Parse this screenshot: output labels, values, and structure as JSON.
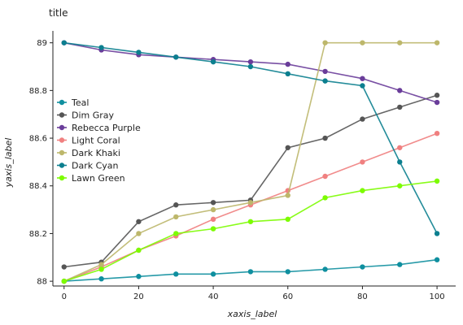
{
  "chart_data": {
    "type": "line",
    "title": "title",
    "xlabel": "xaxis_label",
    "ylabel": "yaxis_label",
    "xlim": [
      -3,
      105
    ],
    "ylim": [
      87.98,
      89.05
    ],
    "xticks": [
      0,
      20,
      40,
      60,
      80,
      100
    ],
    "yticks": [
      88.0,
      88.2,
      88.4,
      88.6,
      88.8,
      89.0
    ],
    "ytick_labels": [
      "88",
      "88.2",
      "88.4",
      "88.6",
      "88.8",
      "89"
    ],
    "grid": false,
    "legend_position": "left, inside plot",
    "series": [
      {
        "name": "Teal",
        "color": "#0f8f9f",
        "x": [
          0,
          10,
          20,
          30,
          40,
          50,
          60,
          70,
          80,
          90,
          100
        ],
        "y": [
          88.0,
          88.01,
          88.02,
          88.03,
          88.03,
          88.04,
          88.04,
          88.05,
          88.06,
          88.07,
          88.09
        ]
      },
      {
        "name": "Dim Gray",
        "color": "#555555",
        "x": [
          0,
          10,
          20,
          30,
          40,
          50,
          60,
          70,
          80,
          90,
          100
        ],
        "y": [
          88.06,
          88.08,
          88.25,
          88.32,
          88.33,
          88.34,
          88.56,
          88.6,
          88.68,
          88.73,
          88.78
        ]
      },
      {
        "name": "Rebecca Purple",
        "color": "#6a3d9a",
        "x": [
          0,
          10,
          20,
          30,
          40,
          50,
          60,
          70,
          80,
          90,
          100
        ],
        "y": [
          89.0,
          88.97,
          88.95,
          88.94,
          88.93,
          88.92,
          88.91,
          88.88,
          88.85,
          88.8,
          88.75
        ]
      },
      {
        "name": "Light Coral",
        "color": "#f08080",
        "x": [
          0,
          10,
          20,
          30,
          40,
          50,
          60,
          70,
          80,
          90,
          100
        ],
        "y": [
          88.0,
          88.06,
          88.13,
          88.19,
          88.26,
          88.32,
          88.38,
          88.44,
          88.5,
          88.56,
          88.62
        ]
      },
      {
        "name": "Dark Khaki",
        "color": "#bdb76b",
        "x": [
          0,
          10,
          20,
          30,
          40,
          50,
          60,
          70,
          80,
          90,
          100
        ],
        "y": [
          88.0,
          88.07,
          88.2,
          88.27,
          88.3,
          88.33,
          88.36,
          89.0,
          89.0,
          89.0,
          89.0
        ]
      },
      {
        "name": "Dark Cyan",
        "color": "#0c7f8f",
        "x": [
          0,
          10,
          20,
          30,
          40,
          50,
          60,
          70,
          80,
          90,
          100
        ],
        "y": [
          89.0,
          88.98,
          88.96,
          88.94,
          88.92,
          88.9,
          88.87,
          88.84,
          88.82,
          88.5,
          88.2
        ]
      },
      {
        "name": "Lawn Green",
        "color": "#7cfc00",
        "x": [
          0,
          10,
          20,
          30,
          40,
          50,
          60,
          70,
          80,
          90,
          100
        ],
        "y": [
          88.0,
          88.05,
          88.13,
          88.2,
          88.22,
          88.25,
          88.26,
          88.35,
          88.38,
          88.4,
          88.42
        ]
      }
    ]
  }
}
